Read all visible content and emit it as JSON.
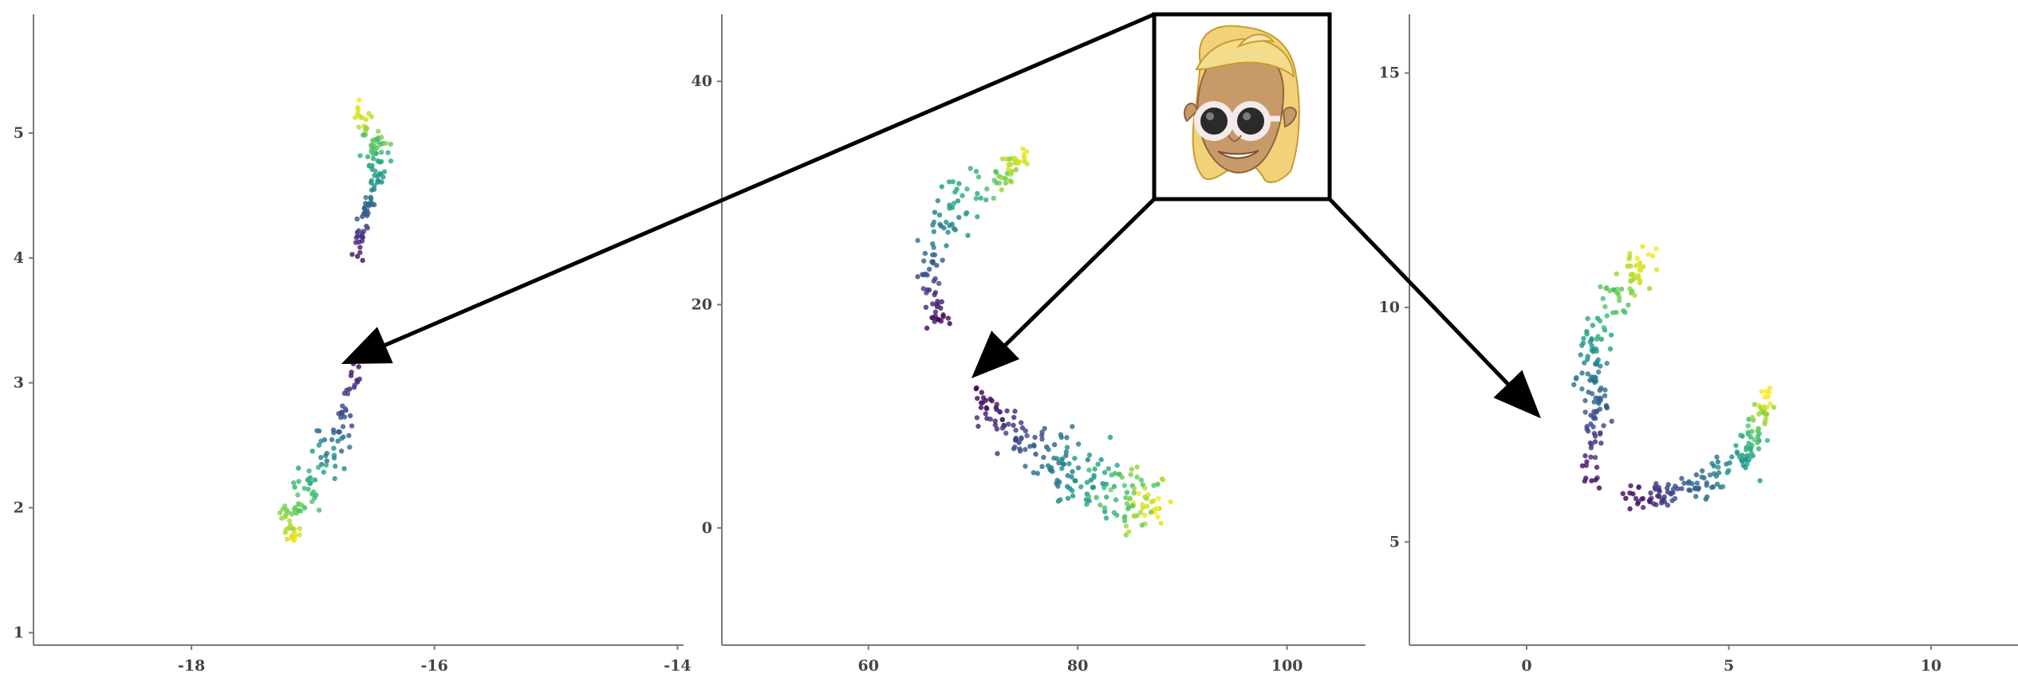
{
  "chart_data": [
    {
      "type": "scatter",
      "title": "",
      "xlabel": "",
      "ylabel": "",
      "xlim": [
        -19.3,
        -13.95
      ],
      "ylim": [
        0.9,
        5.95
      ],
      "grid": false,
      "x_ticks": [
        -18,
        -16,
        -14
      ],
      "y_ticks": [
        1,
        2,
        3,
        4,
        5
      ],
      "x_tick_labels": [
        "-18",
        "-16",
        "-14"
      ],
      "y_tick_labels": [
        "1",
        "2",
        "3",
        "4",
        "5"
      ],
      "color_scale": "viridis (t = 0 dark purple … t = 1 yellow)",
      "clusters": [
        {
          "path": [
            [
              -16.62,
              3.18
            ],
            [
              -16.7,
              2.9
            ],
            [
              -16.78,
              2.58
            ],
            [
              -16.9,
              2.38
            ],
            [
              -17.05,
              2.15
            ],
            [
              -17.2,
              1.92
            ],
            [
              -17.15,
              1.72
            ]
          ],
          "spread": [
            0.08,
            0.09,
            0.16,
            0.2,
            0.17,
            0.1,
            0.05
          ],
          "n": 120,
          "color_range": [
            0.0,
            1.0
          ]
        },
        {
          "path": [
            [
              -16.62,
              3.95
            ],
            [
              -16.6,
              4.25
            ],
            [
              -16.52,
              4.5
            ],
            [
              -16.45,
              4.75
            ],
            [
              -16.5,
              4.98
            ],
            [
              -16.65,
              5.22
            ]
          ],
          "spread": [
            0.05,
            0.05,
            0.07,
            0.11,
            0.12,
            0.07
          ],
          "n": 110,
          "color_range": [
            0.0,
            1.0
          ]
        }
      ]
    },
    {
      "type": "scatter",
      "title": "",
      "xlabel": "",
      "ylabel": "",
      "xlim": [
        46,
        107.5
      ],
      "ylim": [
        -10.5,
        46.0
      ],
      "grid": false,
      "x_ticks": [
        60,
        80,
        100
      ],
      "y_ticks": [
        0,
        20,
        40
      ],
      "x_tick_labels": [
        "60",
        "80",
        "100"
      ],
      "y_tick_labels": [
        "0",
        "20",
        "40"
      ],
      "color_scale": "viridis (t = 0 dark purple … t = 1 yellow)",
      "clusters": [
        {
          "path": [
            [
              67,
              17.5
            ],
            [
              65.5,
              22
            ],
            [
              66.5,
              26
            ],
            [
              69,
              29.5
            ],
            [
              73,
              31.5
            ],
            [
              74.5,
              33
            ]
          ],
          "spread": [
            1.2,
            1.6,
            2.2,
            2.2,
            1.8,
            1.2
          ],
          "n": 130,
          "color_range": [
            0.0,
            1.0
          ]
        },
        {
          "path": [
            [
              70.5,
              12
            ],
            [
              74,
              8
            ],
            [
              78,
              5.5
            ],
            [
              82,
              4
            ],
            [
              85,
              3
            ],
            [
              87.5,
              1.5
            ]
          ],
          "spread": [
            1.2,
            2.2,
            3.2,
            3.4,
            2.8,
            1.6
          ],
          "n": 210,
          "color_range": [
            0.0,
            1.0
          ]
        }
      ]
    },
    {
      "type": "scatter",
      "title": "",
      "xlabel": "",
      "ylabel": "",
      "xlim": [
        -2.9,
        13.0
      ],
      "ylim": [
        2.8,
        16.25
      ],
      "grid": false,
      "x_ticks": [
        0,
        5,
        10
      ],
      "y_ticks": [
        5,
        10,
        15
      ],
      "x_tick_labels": [
        "0",
        "5",
        "10"
      ],
      "y_tick_labels": [
        "5",
        "10",
        "15"
      ],
      "color_scale": "viridis (t = 0 dark purple … t = 1 yellow)",
      "clusters": [
        {
          "path": [
            [
              1.5,
              6.2
            ],
            [
              1.8,
              7.7
            ],
            [
              1.5,
              9.0
            ],
            [
              2.2,
              10.2
            ],
            [
              3.0,
              11.1
            ]
          ],
          "spread": [
            0.3,
            0.35,
            0.45,
            0.45,
            0.28
          ],
          "n": 160,
          "color_range": [
            0.0,
            1.0
          ]
        },
        {
          "path": [
            [
              2.4,
              5.9
            ],
            [
              3.8,
              6.1
            ],
            [
              5.2,
              6.6
            ],
            [
              5.7,
              7.4
            ],
            [
              6.0,
              8.1
            ]
          ],
          "spread": [
            0.3,
            0.35,
            0.45,
            0.35,
            0.25
          ],
          "n": 160,
          "color_range": [
            0.0,
            1.0
          ]
        }
      ]
    }
  ],
  "inset": {
    "image": "cartoon-avatar-with-sunglasses",
    "colors": {
      "frame": "#000000",
      "skin": "#c89a6a",
      "hair": "#f1d27a",
      "glasses": "#f3eaea",
      "lens": "#2a2a2a"
    }
  },
  "arrows": {
    "color": "#000000"
  }
}
